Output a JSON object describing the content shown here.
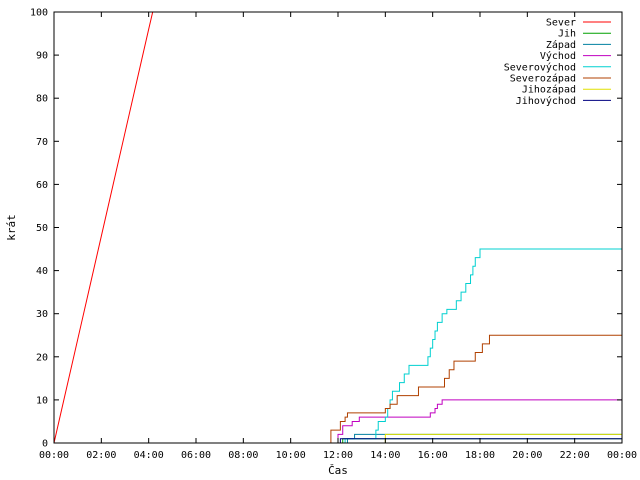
{
  "chart_data": {
    "type": "line",
    "xlabel": "Čas",
    "ylabel": "krát",
    "xlim": [
      0,
      24
    ],
    "ylim": [
      0,
      100
    ],
    "x_ticks": [
      "00:00",
      "02:00",
      "04:00",
      "06:00",
      "08:00",
      "10:00",
      "12:00",
      "14:00",
      "16:00",
      "18:00",
      "20:00",
      "22:00",
      "00:00"
    ],
    "y_ticks": [
      0,
      10,
      20,
      30,
      40,
      50,
      60,
      70,
      80,
      90,
      100
    ],
    "legend_position": "top-right",
    "series": [
      {
        "name": "Sever",
        "color": "#ff0000",
        "step": false,
        "points": [
          [
            0,
            0
          ],
          [
            0.5,
            12
          ],
          [
            1,
            24
          ],
          [
            1.5,
            36
          ],
          [
            2,
            48
          ],
          [
            2.5,
            60
          ],
          [
            3,
            72
          ],
          [
            3.5,
            84
          ],
          [
            4,
            96
          ],
          [
            4.17,
            100
          ]
        ]
      },
      {
        "name": "Jih",
        "color": "#00a000",
        "step": true,
        "points": [
          [
            0,
            0
          ],
          [
            12.2,
            0
          ],
          [
            12.2,
            1
          ],
          [
            24,
            1
          ]
        ]
      },
      {
        "name": "Západ",
        "color": "#0080a0",
        "step": true,
        "points": [
          [
            0,
            0
          ],
          [
            12.4,
            0
          ],
          [
            12.4,
            1
          ],
          [
            12.7,
            1
          ],
          [
            12.7,
            2
          ],
          [
            24,
            2
          ]
        ]
      },
      {
        "name": "Východ",
        "color": "#c000c0",
        "step": true,
        "points": [
          [
            0,
            0
          ],
          [
            12.0,
            0
          ],
          [
            12.0,
            2
          ],
          [
            12.2,
            2
          ],
          [
            12.2,
            4
          ],
          [
            12.6,
            4
          ],
          [
            12.6,
            5
          ],
          [
            12.9,
            5
          ],
          [
            12.9,
            6
          ],
          [
            15.8,
            6
          ],
          [
            15.9,
            7
          ],
          [
            16.1,
            8
          ],
          [
            16.2,
            9
          ],
          [
            16.4,
            10
          ],
          [
            24,
            10
          ]
        ]
      },
      {
        "name": "Severovýchod",
        "color": "#00d0d0",
        "step": true,
        "points": [
          [
            0,
            0
          ],
          [
            12.3,
            0
          ],
          [
            12.3,
            1
          ],
          [
            13.5,
            1
          ],
          [
            13.6,
            3
          ],
          [
            13.7,
            5
          ],
          [
            14.0,
            6
          ],
          [
            14.1,
            8
          ],
          [
            14.2,
            10
          ],
          [
            14.3,
            12
          ],
          [
            14.6,
            14
          ],
          [
            14.8,
            16
          ],
          [
            15.0,
            18
          ],
          [
            15.7,
            18
          ],
          [
            15.8,
            20
          ],
          [
            15.9,
            22
          ],
          [
            16.0,
            24
          ],
          [
            16.1,
            26
          ],
          [
            16.2,
            28
          ],
          [
            16.4,
            30
          ],
          [
            16.6,
            31
          ],
          [
            16.9,
            31
          ],
          [
            17.0,
            33
          ],
          [
            17.2,
            35
          ],
          [
            17.4,
            37
          ],
          [
            17.6,
            39
          ],
          [
            17.7,
            41
          ],
          [
            17.8,
            43
          ],
          [
            18.0,
            45
          ],
          [
            24,
            45
          ]
        ]
      },
      {
        "name": "Severozápad",
        "color": "#b04000",
        "step": true,
        "points": [
          [
            0,
            0
          ],
          [
            11.7,
            0
          ],
          [
            11.7,
            3
          ],
          [
            12.0,
            3
          ],
          [
            12.1,
            5
          ],
          [
            12.3,
            6
          ],
          [
            12.4,
            7
          ],
          [
            13.9,
            7
          ],
          [
            14.0,
            8
          ],
          [
            14.2,
            9
          ],
          [
            14.5,
            11
          ],
          [
            15.3,
            11
          ],
          [
            15.4,
            13
          ],
          [
            16.3,
            13
          ],
          [
            16.5,
            15
          ],
          [
            16.7,
            17
          ],
          [
            16.9,
            19
          ],
          [
            17.6,
            19
          ],
          [
            17.8,
            21
          ],
          [
            18.1,
            23
          ],
          [
            18.4,
            25
          ],
          [
            24,
            25
          ]
        ]
      },
      {
        "name": "Jihozápad",
        "color": "#e0e000",
        "step": true,
        "points": [
          [
            0,
            0
          ],
          [
            14.0,
            0
          ],
          [
            14.0,
            2
          ],
          [
            24,
            2
          ]
        ]
      },
      {
        "name": "Jihovýchod",
        "color": "#000080",
        "step": true,
        "points": [
          [
            0,
            0
          ],
          [
            12.1,
            0
          ],
          [
            12.1,
            1
          ],
          [
            24,
            1
          ]
        ]
      }
    ]
  }
}
